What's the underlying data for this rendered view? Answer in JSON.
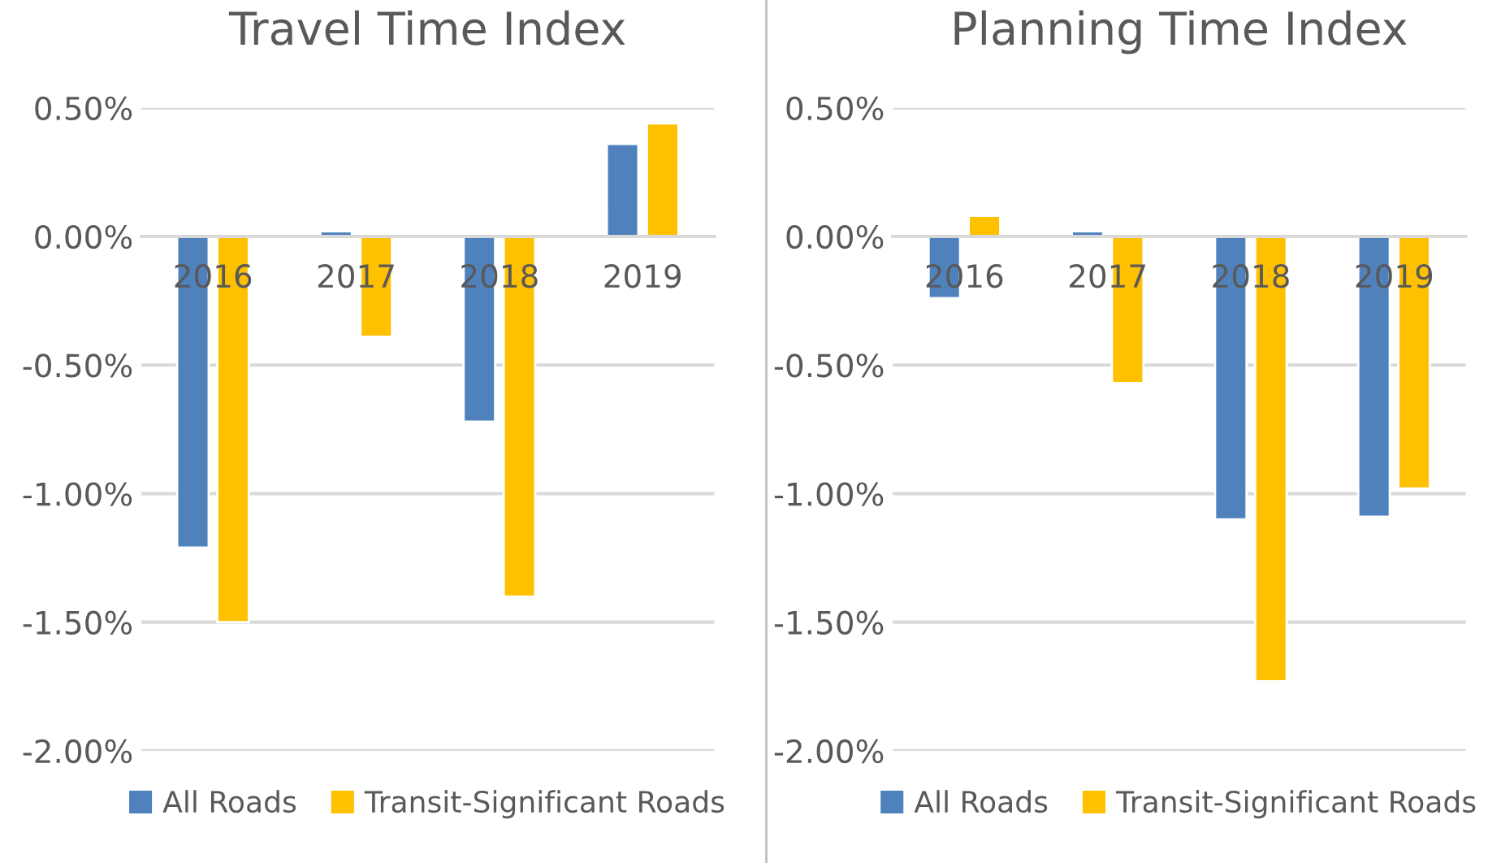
{
  "chart_data": [
    {
      "type": "bar",
      "title": "Travel Time Index",
      "categories": [
        "2016",
        "2017",
        "2018",
        "2019"
      ],
      "series": [
        {
          "name": "All Roads",
          "color": "#4f81bd",
          "values": [
            -1.21,
            0.02,
            -0.72,
            0.36
          ]
        },
        {
          "name": "Transit-Significant Roads",
          "color": "#ffc000",
          "values": [
            -1.5,
            -0.39,
            -1.4,
            0.44
          ]
        }
      ],
      "ylim": [
        -2.0,
        0.5
      ],
      "yticks": [
        {
          "value": 0.5,
          "label": "0.50%"
        },
        {
          "value": 0,
          "label": "0.00%"
        },
        {
          "value": -0.5,
          "label": "-0.50%"
        },
        {
          "value": -1.0,
          "label": "-1.00%"
        },
        {
          "value": -1.5,
          "label": "-1.50%"
        },
        {
          "value": -2.0,
          "label": "-2.00%"
        }
      ],
      "grid": "y",
      "legend": "bottom"
    },
    {
      "type": "bar",
      "title": "Planning Time Index",
      "categories": [
        "2016",
        "2017",
        "2018",
        "2019"
      ],
      "series": [
        {
          "name": "All Roads",
          "color": "#4f81bd",
          "values": [
            -0.24,
            0.02,
            -1.1,
            -1.09
          ]
        },
        {
          "name": "Transit-Significant Roads",
          "color": "#ffc000",
          "values": [
            0.08,
            -0.57,
            -1.73,
            -0.98
          ]
        }
      ],
      "ylim": [
        -2.0,
        0.5
      ],
      "yticks": [
        {
          "value": 0.5,
          "label": "0.50%"
        },
        {
          "value": 0,
          "label": "0.00%"
        },
        {
          "value": -0.5,
          "label": "-0.50%"
        },
        {
          "value": -1.0,
          "label": "-1.00%"
        },
        {
          "value": -1.5,
          "label": "-1.50%"
        },
        {
          "value": -2.0,
          "label": "-2.00%"
        }
      ],
      "grid": "y",
      "legend": "bottom"
    }
  ]
}
